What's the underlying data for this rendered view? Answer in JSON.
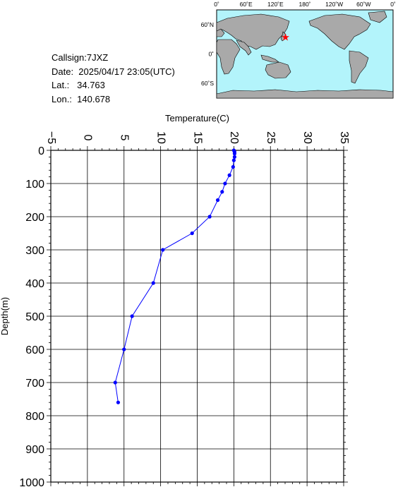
{
  "info": {
    "callsign": "Callsign:7JXZ",
    "date": "Date:  2025/04/17 23:05(UTC)",
    "lat": "Lat.:   34.763",
    "lon": "Lon.:  140.678"
  },
  "map": {
    "lon_ticks": [
      "0˚",
      "60˚E",
      "120˚E",
      "180˚",
      "120˚W",
      "60˚W",
      "0˚"
    ],
    "lat_ticks": [
      "60˚N",
      "0˚",
      "60˚S"
    ],
    "ocean_color": "#b3f4fb",
    "land_color": "#a9a9a9",
    "marker_color": "#ff0000",
    "marker": {
      "lon": 140.678,
      "lat": 34.763
    }
  },
  "chart_data": {
    "type": "line",
    "title": "",
    "xlabel": "Temperature(C)",
    "ylabel": "Depth(m)",
    "x_ticks": [
      "−5",
      "0",
      "5",
      "10",
      "15",
      "20",
      "25",
      "30",
      "35"
    ],
    "y_ticks": [
      "0",
      "100",
      "200",
      "300",
      "400",
      "500",
      "600",
      "700",
      "800",
      "900",
      "1000"
    ],
    "xlim": [
      -5,
      35
    ],
    "ylim": [
      1000,
      0
    ],
    "grid": true,
    "line_color": "#0000ff",
    "series": [
      {
        "temperature": [
          20.0,
          20.1,
          20.1,
          20.1,
          20.0,
          19.9,
          19.4,
          18.8,
          18.4,
          17.8,
          16.7,
          14.3,
          10.3,
          9.0,
          6.1,
          5.0,
          3.8,
          4.2
        ],
        "depth": [
          0,
          5,
          10,
          20,
          30,
          50,
          75,
          100,
          125,
          150,
          200,
          250,
          300,
          400,
          500,
          600,
          700,
          760
        ]
      }
    ]
  }
}
